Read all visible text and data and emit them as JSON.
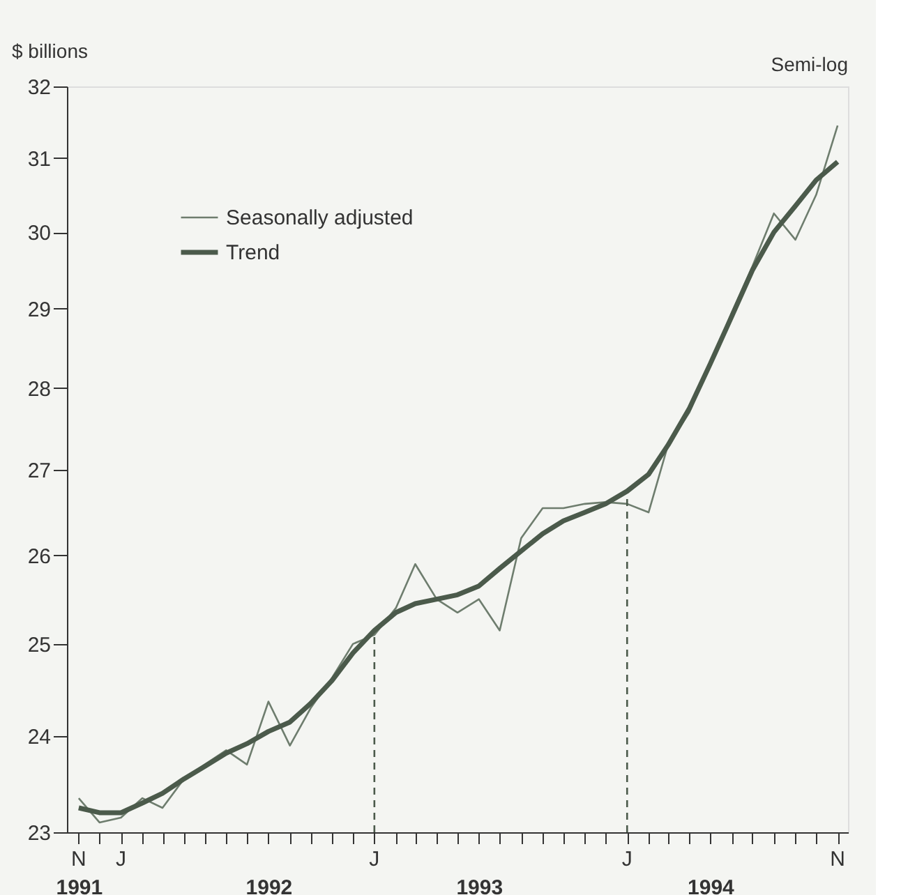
{
  "chart_data": {
    "type": "line",
    "ylabel": "$ billions",
    "annotations": [
      "Semi-log",
      "N",
      "J",
      "J",
      "J",
      "N"
    ],
    "log": "y",
    "x": [
      "1991-11",
      "1991-12",
      "1992-01",
      "1992-02",
      "1992-03",
      "1992-04",
      "1992-05",
      "1992-06",
      "1992-07",
      "1992-08",
      "1992-09",
      "1992-10",
      "1992-11",
      "1992-12",
      "1993-01",
      "1993-02",
      "1993-03",
      "1993-04",
      "1993-05",
      "1993-06",
      "1993-07",
      "1993-08",
      "1993-09",
      "1993-10",
      "1993-11",
      "1993-12",
      "1994-01",
      "1994-02",
      "1994-03",
      "1994-04",
      "1994-05",
      "1994-06",
      "1994-07",
      "1994-08",
      "1994-09",
      "1994-10",
      "1994-11"
    ],
    "series": [
      {
        "name": "Seasonally adjusted",
        "color": "#6e7d6e",
        "values": [
          23.35,
          23.1,
          23.15,
          23.35,
          23.25,
          23.55,
          23.7,
          23.85,
          23.7,
          24.37,
          23.9,
          24.3,
          24.63,
          25.0,
          25.1,
          25.4,
          25.9,
          25.5,
          25.35,
          25.5,
          25.15,
          26.2,
          26.55,
          26.55,
          26.6,
          26.62,
          26.6,
          26.5,
          27.3,
          27.7,
          28.3,
          28.95,
          29.55,
          30.25,
          29.9,
          30.5,
          31.45
        ]
      },
      {
        "name": "Trend",
        "color": "#4b5a4b",
        "values": [
          23.25,
          23.2,
          23.2,
          23.3,
          23.4,
          23.55,
          23.68,
          23.82,
          23.92,
          24.05,
          24.15,
          24.35,
          24.6,
          24.9,
          25.15,
          25.35,
          25.45,
          25.5,
          25.55,
          25.65,
          25.85,
          26.05,
          26.25,
          26.4,
          26.5,
          26.6,
          26.75,
          26.95,
          27.3,
          27.75,
          28.3,
          28.9,
          29.5,
          30.0,
          30.35,
          30.7,
          30.95
        ]
      }
    ],
    "ref_lines": [
      {
        "axis": "x",
        "value": "1993-01",
        "line_style": "dashed",
        "color": "#4b5a4b"
      },
      {
        "axis": "x",
        "value": "1994-01",
        "line_style": "dashed",
        "color": "#4b5a4b"
      }
    ],
    "ylim": [
      23,
      32
    ],
    "yticks": [
      23,
      24,
      25,
      26,
      27,
      28,
      29,
      30,
      31,
      32
    ],
    "xlim": [
      "1991-10-15",
      "1994-11-16"
    ],
    "xticks": [
      {
        "value": "1991-11",
        "label": "1991"
      },
      {
        "value": "1991-12",
        "label": null
      },
      {
        "value": "1992-01",
        "label": null
      },
      {
        "value": "1992-02",
        "label": null
      },
      {
        "value": "1992-03",
        "label": null
      },
      {
        "value": "1992-04",
        "label": null
      },
      {
        "value": "1992-05",
        "label": null
      },
      {
        "value": "1992-06",
        "label": null
      },
      {
        "value": "1992-07",
        "label": null
      },
      {
        "value": "1992-08",
        "label": "1992"
      },
      {
        "value": "1992-09",
        "label": null
      },
      {
        "value": "1992-10",
        "label": null
      },
      {
        "value": "1992-11",
        "label": null
      },
      {
        "value": "1992-12",
        "label": null
      },
      {
        "value": "1993-01",
        "label": null
      },
      {
        "value": "1993-02",
        "label": null
      },
      {
        "value": "1993-03",
        "label": null
      },
      {
        "value": "1993-04",
        "label": null
      },
      {
        "value": "1993-05",
        "label": null
      },
      {
        "value": "1993-06",
        "label": "1993"
      },
      {
        "value": "1993-07",
        "label": null
      },
      {
        "value": "1993-08",
        "label": null
      },
      {
        "value": "1993-09",
        "label": null
      },
      {
        "value": "1993-10",
        "label": null
      },
      {
        "value": "1993-11",
        "label": null
      },
      {
        "value": "1993-12",
        "label": null
      },
      {
        "value": "1994-01",
        "label": null
      },
      {
        "value": "1994-02",
        "label": null
      },
      {
        "value": "1994-03",
        "label": null
      },
      {
        "value": "1994-04",
        "label": null
      },
      {
        "value": "1994-05",
        "label": "1994"
      },
      {
        "value": "1994-06",
        "label": null
      },
      {
        "value": "1994-07",
        "label": null
      },
      {
        "value": "1994-08",
        "label": null
      },
      {
        "value": "1994-09",
        "label": null
      },
      {
        "value": "1994-10",
        "label": null
      },
      {
        "value": "1994-11",
        "label": null
      }
    ],
    "grid": false,
    "legend": "top left",
    "line_style": "solid",
    "marker": "none"
  }
}
